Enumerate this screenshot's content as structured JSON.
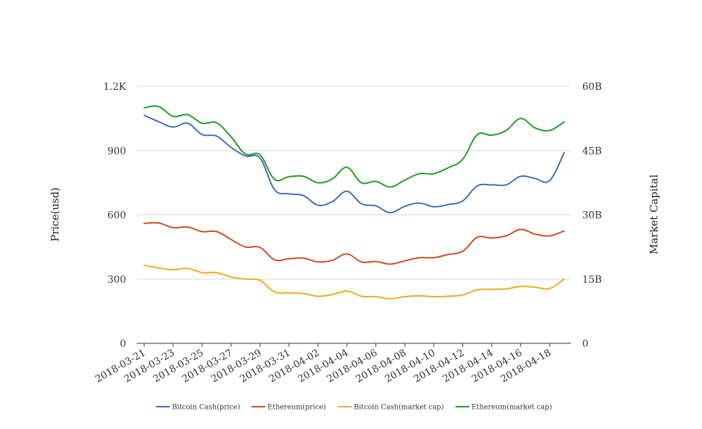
{
  "chart_data": {
    "type": "line",
    "x": [
      "2018-03-21",
      "2018-03-22",
      "2018-03-23",
      "2018-03-24",
      "2018-03-25",
      "2018-03-26",
      "2018-03-27",
      "2018-03-28",
      "2018-03-29",
      "2018-03-30",
      "2018-03-31",
      "2018-04-01",
      "2018-04-02",
      "2018-04-03",
      "2018-04-04",
      "2018-04-05",
      "2018-04-06",
      "2018-04-07",
      "2018-04-08",
      "2018-04-09",
      "2018-04-10",
      "2018-04-11",
      "2018-04-12",
      "2018-04-13",
      "2018-04-14",
      "2018-04-15",
      "2018-04-16",
      "2018-04-17",
      "2018-04-18",
      "2018-04-19"
    ],
    "x_tick_labels": [
      "2018-03-21",
      "2018-03-23",
      "2018-03-25",
      "2018-03-27",
      "2018-03-29",
      "2018-03-31",
      "2018-04-02",
      "2018-04-04",
      "2018-04-06",
      "2018-04-08",
      "2018-04-10",
      "2018-04-12",
      "2018-04-14",
      "2018-04-16",
      "2018-04-18"
    ],
    "y_left": {
      "label": "Price(usd)",
      "range": [
        0,
        1200
      ],
      "ticks": [
        0,
        300,
        600,
        900,
        1200
      ],
      "tick_labels": [
        "0",
        "300",
        "600",
        "900",
        "1.2K"
      ]
    },
    "y_right": {
      "label": "Market Capital",
      "range": [
        0,
        60000000000
      ],
      "ticks": [
        0,
        15000000000,
        30000000000,
        45000000000,
        60000000000
      ],
      "tick_labels": [
        "0",
        "15B",
        "30B",
        "45B",
        "60B"
      ]
    },
    "grid": true,
    "legend_position": "bottom",
    "series": [
      {
        "name": "Bitcoin Cash(price)",
        "axis": "left",
        "color": "#3b6bb8",
        "values": [
          1065,
          1035,
          1010,
          1028,
          975,
          968,
          915,
          875,
          865,
          718,
          698,
          690,
          645,
          662,
          710,
          652,
          642,
          610,
          640,
          655,
          638,
          648,
          665,
          735,
          740,
          740,
          780,
          770,
          760,
          890
        ]
      },
      {
        "name": "Ethereum(price)",
        "axis": "left",
        "color": "#cc4a1f",
        "values": [
          560,
          562,
          540,
          543,
          522,
          522,
          485,
          450,
          448,
          390,
          395,
          398,
          380,
          388,
          418,
          380,
          382,
          370,
          385,
          400,
          400,
          415,
          430,
          495,
          492,
          502,
          532,
          510,
          502,
          525
        ]
      },
      {
        "name": "Bitcoin Cash(market cap)",
        "axis": "right",
        "color": "#f0a71e",
        "values": [
          18200000000,
          17600000000,
          17200000000,
          17500000000,
          16500000000,
          16500000000,
          15500000000,
          15000000000,
          14700000000,
          12000000000,
          11800000000,
          11600000000,
          11000000000,
          11400000000,
          12200000000,
          11000000000,
          10900000000,
          10400000000,
          10900000000,
          11100000000,
          10900000000,
          11000000000,
          11300000000,
          12500000000,
          12600000000,
          12700000000,
          13300000000,
          13100000000,
          12800000000,
          15000000000
        ]
      },
      {
        "name": "Ethereum(market cap)",
        "axis": "right",
        "color": "#1f9a1f",
        "values": [
          55000000000,
          55300000000,
          53000000000,
          53400000000,
          51400000000,
          51500000000,
          48200000000,
          44200000000,
          44000000000,
          38300000000,
          38900000000,
          39000000000,
          37500000000,
          38400000000,
          41100000000,
          37500000000,
          37800000000,
          36500000000,
          38100000000,
          39600000000,
          39600000000,
          41000000000,
          43000000000,
          48700000000,
          48600000000,
          49700000000,
          52500000000,
          50300000000,
          49700000000,
          51700000000
        ]
      }
    ]
  }
}
